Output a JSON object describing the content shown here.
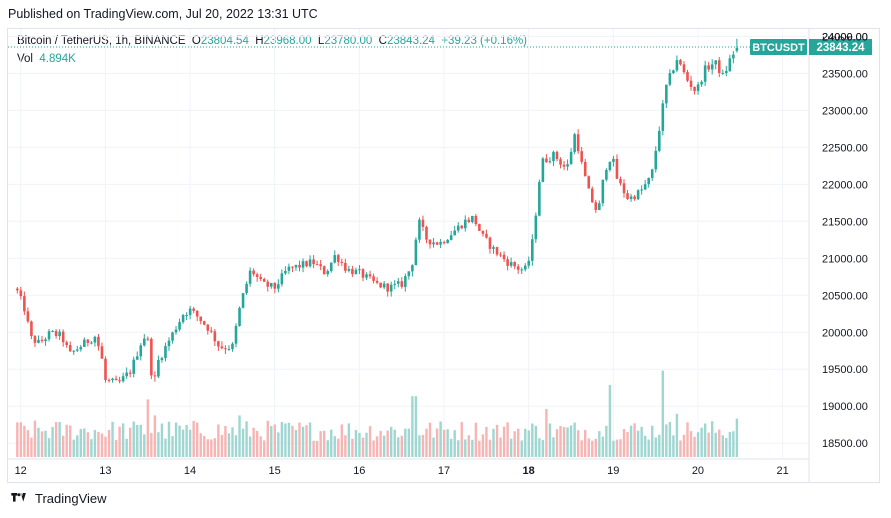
{
  "header": {
    "published": "Published on TradingView.com, Jul 20, 2022 13:31 UTC"
  },
  "legend": {
    "symbol": "Bitcoin / TetherUS, 1h, BINANCE",
    "o_label": "O",
    "o_value": "23804.54",
    "h_label": "H",
    "h_value": "23968.00",
    "l_label": "L",
    "l_value": "23780.00",
    "c_label": "C",
    "c_value": "23843.24",
    "change": "+39.23 (+0.16%)",
    "vol_label": "Vol",
    "vol_value": "4.894K"
  },
  "axis": {
    "currency": "USDT"
  },
  "price_tag": {
    "symbol": "BTCUSDT",
    "price": "23843.24",
    "value": 23843.24
  },
  "footer": {
    "brand": "TradingView"
  },
  "colors": {
    "up": "#26a69a",
    "down": "#ef5350",
    "up_vol": "#9fd6d1",
    "down_vol": "#f6b4b3",
    "grid": "#f0f3fa",
    "tag": "#26a69a"
  },
  "chart_data": {
    "type": "candlestick",
    "title": "Bitcoin / TetherUS, 1h, BINANCE",
    "ylabel": "USDT",
    "ylim": [
      18300,
      24100
    ],
    "price_ticks": [
      "18500.00",
      "19000.00",
      "19500.00",
      "20000.00",
      "20500.00",
      "21000.00",
      "21500.00",
      "22000.00",
      "22500.00",
      "23000.00",
      "23500.00",
      "24000.00"
    ],
    "x_range_days": [
      11.85,
      21.3
    ],
    "x_ticks": [
      {
        "day": 12,
        "label": "12",
        "bold": false
      },
      {
        "day": 13,
        "label": "13",
        "bold": false
      },
      {
        "day": 14,
        "label": "14",
        "bold": false
      },
      {
        "day": 15,
        "label": "15",
        "bold": false
      },
      {
        "day": 16,
        "label": "16",
        "bold": false
      },
      {
        "day": 17,
        "label": "17",
        "bold": false
      },
      {
        "day": 18,
        "label": "18",
        "bold": true
      },
      {
        "day": 19,
        "label": "19",
        "bold": false
      },
      {
        "day": 20,
        "label": "20",
        "bold": false
      },
      {
        "day": 21,
        "label": "21",
        "bold": false
      }
    ],
    "anchors_close": [
      [
        11.96,
        20550
      ],
      [
        12.05,
        20300
      ],
      [
        12.12,
        19920
      ],
      [
        12.22,
        19850
      ],
      [
        12.35,
        19990
      ],
      [
        12.48,
        19950
      ],
      [
        12.58,
        19700
      ],
      [
        12.75,
        19850
      ],
      [
        12.88,
        19950
      ],
      [
        12.95,
        19700
      ],
      [
        13.0,
        19350
      ],
      [
        13.15,
        19300
      ],
      [
        13.3,
        19480
      ],
      [
        13.45,
        19950
      ],
      [
        13.52,
        19850
      ],
      [
        13.56,
        19200
      ],
      [
        13.62,
        19600
      ],
      [
        13.78,
        19950
      ],
      [
        13.92,
        20250
      ],
      [
        14.0,
        20300
      ],
      [
        14.1,
        20200
      ],
      [
        14.22,
        20050
      ],
      [
        14.35,
        19800
      ],
      [
        14.5,
        19800
      ],
      [
        14.6,
        20400
      ],
      [
        14.72,
        20850
      ],
      [
        14.85,
        20650
      ],
      [
        15.0,
        20600
      ],
      [
        15.15,
        20850
      ],
      [
        15.3,
        20900
      ],
      [
        15.45,
        20950
      ],
      [
        15.6,
        20800
      ],
      [
        15.72,
        21050
      ],
      [
        15.85,
        20850
      ],
      [
        16.0,
        20800
      ],
      [
        16.2,
        20650
      ],
      [
        16.35,
        20600
      ],
      [
        16.5,
        20650
      ],
      [
        16.62,
        20900
      ],
      [
        16.7,
        21500
      ],
      [
        16.8,
        21250
      ],
      [
        16.95,
        21200
      ],
      [
        17.1,
        21350
      ],
      [
        17.25,
        21500
      ],
      [
        17.35,
        21550
      ],
      [
        17.45,
        21300
      ],
      [
        17.6,
        21100
      ],
      [
        17.75,
        20950
      ],
      [
        17.9,
        20850
      ],
      [
        17.98,
        20850
      ],
      [
        18.05,
        21250
      ],
      [
        18.15,
        22300
      ],
      [
        18.3,
        22400
      ],
      [
        18.45,
        22200
      ],
      [
        18.55,
        22700
      ],
      [
        18.62,
        22300
      ],
      [
        18.72,
        21850
      ],
      [
        18.82,
        21600
      ],
      [
        18.9,
        22200
      ],
      [
        18.98,
        22400
      ],
      [
        19.05,
        22050
      ],
      [
        19.18,
        21800
      ],
      [
        19.32,
        21900
      ],
      [
        19.45,
        22100
      ],
      [
        19.55,
        22800
      ],
      [
        19.62,
        23300
      ],
      [
        19.75,
        23700
      ],
      [
        19.88,
        23400
      ],
      [
        19.98,
        23250
      ],
      [
        20.08,
        23550
      ],
      [
        20.2,
        23650
      ],
      [
        20.3,
        23450
      ],
      [
        20.4,
        23750
      ],
      [
        20.48,
        23843
      ]
    ],
    "volume_spikes": [
      {
        "day": 13.5,
        "value": 3.6
      },
      {
        "day": 13.6,
        "value": 2.6
      },
      {
        "day": 14.6,
        "value": 2.6
      },
      {
        "day": 16.65,
        "value": 3.8
      },
      {
        "day": 18.2,
        "value": 3.0
      },
      {
        "day": 18.95,
        "value": 4.5
      },
      {
        "day": 19.6,
        "value": 5.4
      },
      {
        "day": 19.75,
        "value": 2.7
      },
      {
        "day": 20.45,
        "value": 2.4
      }
    ]
  }
}
